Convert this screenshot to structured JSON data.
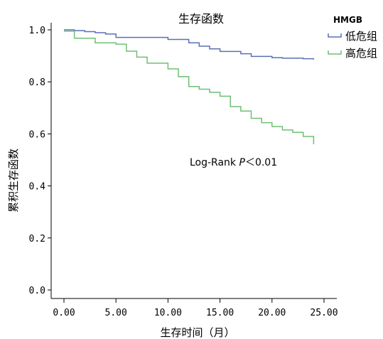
{
  "chart_data": {
    "type": "line",
    "title": "生存函数",
    "xlabel": "生存时间（月）",
    "ylabel": "累积生存函数",
    "xlim": [
      0,
      25
    ],
    "ylim": [
      0,
      1.0
    ],
    "xticks": [
      0,
      5,
      10,
      15,
      20,
      25
    ],
    "xtick_labels": [
      "0.00",
      "5.00",
      "10.00",
      "15.00",
      "20.00",
      "25.00"
    ],
    "yticks": [
      0,
      0.2,
      0.4,
      0.6,
      0.8,
      1.0
    ],
    "ytick_labels": [
      "0.0",
      "0.2",
      "0.4",
      "0.6",
      "0.8",
      "1.0"
    ],
    "grid": false,
    "legend": {
      "title": "HMGB",
      "placement": "top-right",
      "entries": [
        "低危组",
        "高危组"
      ]
    },
    "annotation": {
      "prefix": "Log-Rank ",
      "italic": "P",
      "suffix": "＜0.01"
    },
    "series": [
      {
        "name": "低危组",
        "color": "#5b6fb5",
        "step": true,
        "x": [
          0,
          1,
          2,
          3,
          4,
          5,
          10,
          12,
          13,
          14,
          15,
          17,
          18,
          20,
          21,
          23,
          24
        ],
        "y": [
          1.0,
          0.997,
          0.993,
          0.989,
          0.984,
          0.971,
          0.963,
          0.95,
          0.937,
          0.927,
          0.917,
          0.908,
          0.898,
          0.893,
          0.891,
          0.889,
          0.886
        ]
      },
      {
        "name": "高危组",
        "color": "#6fbf73",
        "step": true,
        "x": [
          0,
          1,
          3,
          5,
          6,
          7,
          8,
          9,
          10,
          11,
          12,
          13,
          14,
          15,
          16,
          17,
          18,
          19,
          20,
          21,
          22,
          23,
          24
        ],
        "y": [
          0.995,
          0.968,
          0.95,
          0.945,
          0.918,
          0.895,
          0.872,
          0.872,
          0.85,
          0.82,
          0.782,
          0.772,
          0.76,
          0.745,
          0.705,
          0.688,
          0.66,
          0.643,
          0.628,
          0.615,
          0.606,
          0.59,
          0.56
        ]
      }
    ]
  }
}
